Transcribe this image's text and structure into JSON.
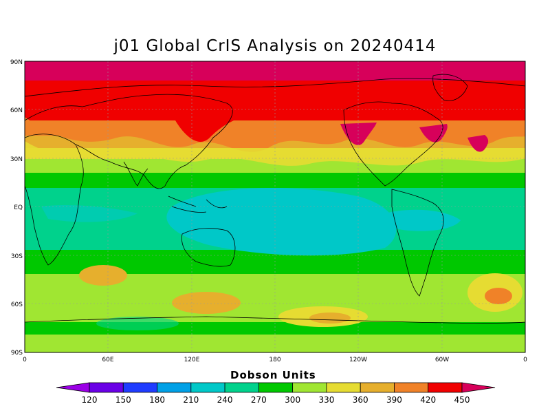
{
  "title": "j01 Global CrIS Analysis on 20240414",
  "lat_labels": [
    "90N",
    "60N",
    "30N",
    "EQ",
    "30S",
    "60S",
    "90S"
  ],
  "lon_labels": [
    "0",
    "60E",
    "120E",
    "180",
    "120W",
    "60W",
    "0"
  ],
  "colorbar": {
    "title": "Dobson Units",
    "ticks": [
      "120",
      "150",
      "180",
      "210",
      "240",
      "270",
      "300",
      "330",
      "360",
      "390",
      "420",
      "450"
    ],
    "colors": [
      "#9b00e6",
      "#6a00e6",
      "#1f3cff",
      "#00a0e6",
      "#00c8c8",
      "#00d28c",
      "#00c800",
      "#a0e632",
      "#e6dc32",
      "#e6af2d",
      "#f08228",
      "#f00000",
      "#d7005a"
    ]
  },
  "map": {
    "projection": "cylindrical equidistant",
    "lon_range": [
      0,
      360
    ],
    "lat_range": [
      -90,
      90
    ],
    "band_colors": {
      "arctic": "#d7005a",
      "high_north": "#f00000",
      "north_mid": "#f08228",
      "north_mid2": "#e6af2d",
      "north_low": "#e6dc32",
      "subtropics": "#a0e632",
      "tropics_edge": "#00c800",
      "tropics": "#00d28c",
      "equator": "#00c8c8",
      "south_mid": "#00c800",
      "south_high": "#a0e632",
      "antarctic": "#a0e632"
    }
  }
}
